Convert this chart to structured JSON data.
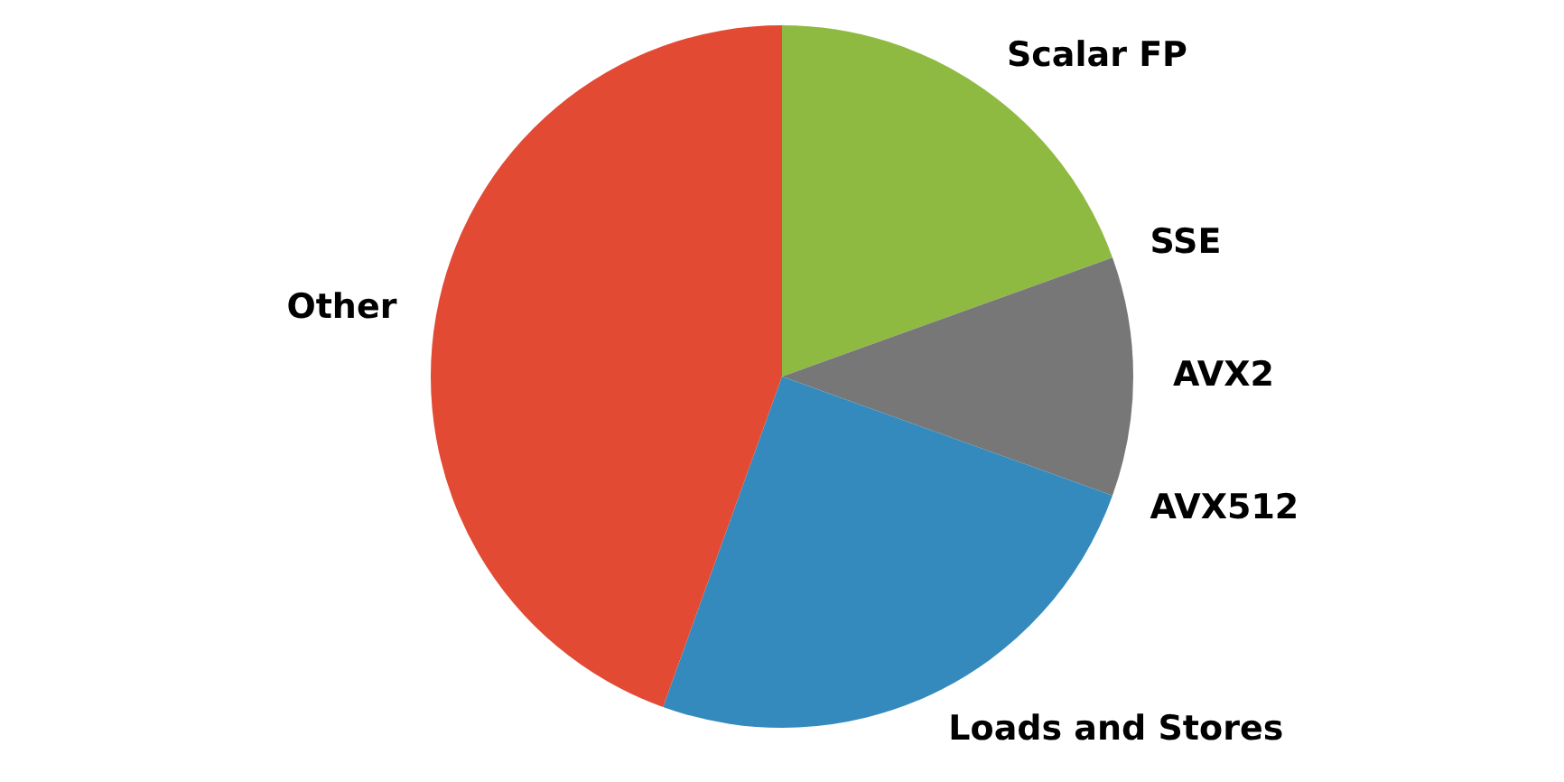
{
  "chart_data": {
    "type": "pie",
    "categories": [
      "Scalar FP",
      "SSE",
      "AVX2",
      "AVX512",
      "Loads and Stores",
      "Other"
    ],
    "values": [
      19.5,
      0,
      11,
      0,
      25,
      44.5
    ],
    "colors": [
      "#8eba42",
      "#988ed5",
      "#777777",
      "#fbc15e",
      "#348abd",
      "#e24a33"
    ],
    "legend": false
  }
}
